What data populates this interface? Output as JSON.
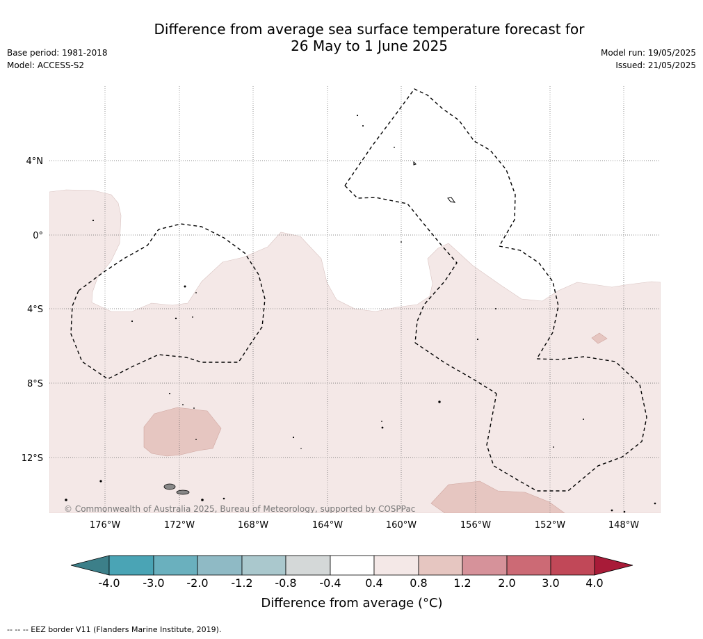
{
  "title": {
    "line1": "Difference from average sea surface temperature forecast for",
    "line2": "26 May to 1 June 2025"
  },
  "meta_left": {
    "base_period": "Base period: 1981-2018",
    "model": "Model: ACCESS-S2"
  },
  "meta_right": {
    "model_run": "Model run: 19/05/2025",
    "issued": "Issued: 21/05/2025"
  },
  "map": {
    "lat_labels": [
      "4°N",
      "0°",
      "4°S",
      "8°S",
      "12°S"
    ],
    "lon_labels": [
      "176°W",
      "172°W",
      "168°W",
      "164°W",
      "160°W",
      "156°W",
      "152°W",
      "148°W"
    ],
    "copyright": "© Commonwealth of Australia 2025, Bureau of Meteorology, supported by COSPPac",
    "colors": {
      "band_0_4_to_0_8": "#f4e8e7",
      "band_0_8_to_1_2": "#e6c6c1",
      "land": "#888888"
    }
  },
  "colorbar": {
    "title": "Difference from average (°C)",
    "tick_labels": [
      "-4.0",
      "-3.0",
      "-2.0",
      "-1.2",
      "-0.8",
      "-0.4",
      "0.4",
      "0.8",
      "1.2",
      "2.0",
      "3.0",
      "4.0"
    ],
    "colors": {
      "below": "#3c7f89",
      "bands": [
        "#4aa4b5",
        "#6ab0be",
        "#8fbac5",
        "#aac8cd",
        "#d4d8d8",
        "#ffffff",
        "#f4e8e7",
        "#e6c6c1",
        "#d6929a",
        "#cc6a75",
        "#c14858"
      ],
      "above": "#a81b38"
    }
  },
  "footnote": "--  --  -- EEZ border V11 (Flanders Marine Institute, 2019)."
}
